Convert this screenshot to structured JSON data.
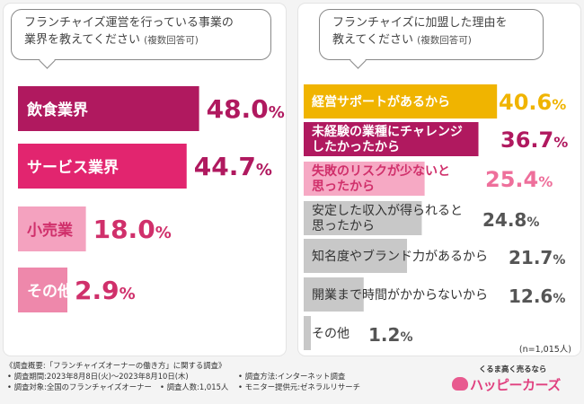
{
  "chart_data": [
    {
      "type": "bar",
      "orientation": "horizontal",
      "title": "フランチャイズ運営を行っている事業の業界を教えてください",
      "title_line1": "フランチャイズ運営を行っている事業の",
      "title_line2": "業界を教えてください",
      "note": "(複数回答可)",
      "unit": "%",
      "xlim": [
        0,
        100
      ],
      "categories": [
        "飲食業界",
        "サービス業界",
        "小売業",
        "その他"
      ],
      "values": [
        48.0,
        44.7,
        18.0,
        2.9
      ],
      "colors": [
        "#b0195f",
        "#e2256f",
        "#f4a2bf",
        "#ee88ab"
      ],
      "label_colors": [
        "#ffffff",
        "#ffffff",
        "#d0306b",
        "#ffffff"
      ]
    },
    {
      "type": "bar",
      "orientation": "horizontal",
      "title": "フランチャイズに加盟した理由を教えてください",
      "title_line1": "フランチャイズに加盟した理由を",
      "title_line2": "教えてください",
      "note": "(複数回答可)",
      "unit": "%",
      "xlim": [
        0,
        100
      ],
      "categories": [
        [
          "経営サポートがあるから"
        ],
        [
          "未経験の業種にチャレンジ",
          "したかったから"
        ],
        [
          "失敗のリスクが少ないと",
          "思ったから"
        ],
        [
          "安定した収入が得られると",
          "思ったから"
        ],
        [
          "知名度やブランド力があるから"
        ],
        [
          "開業まで時間がかからないから"
        ],
        [
          "その他"
        ]
      ],
      "values": [
        40.6,
        36.7,
        25.4,
        24.8,
        21.7,
        12.6,
        1.2
      ],
      "colors": [
        "#f0b400",
        "#b0195f",
        "#f6a9c4",
        "#c8c8c8",
        "#c8c8c8",
        "#c8c8c8",
        "#c8c8c8"
      ],
      "label_colors": [
        "#ffffff",
        "#ffffff",
        "#d0306b",
        "#333333",
        "#333333",
        "#333333",
        "#333333"
      ],
      "value_colors": [
        "#f0b400",
        "#b0195f",
        "#ee6f9b",
        "#555555",
        "#555555",
        "#555555",
        "#555555"
      ]
    }
  ],
  "sample_note": "(n=1,015人)",
  "survey": {
    "overview": "《調査概要:「フランチャイズオーナーの働き方」に関する調査》",
    "period": "• 調査期間:2023年8月8日(火)〜2023年8月10日(木)",
    "target": "• 調査対象:全国のフランチャイズオーナー",
    "count": "• 調査人数:1,015人",
    "method": "• 調査方法:インターネット調査",
    "provider": "• モニター提供元:ゼネラルリサーチ"
  },
  "logo": {
    "tagline": "くるま高く売るなら",
    "name": "ハッピーカーズ"
  }
}
